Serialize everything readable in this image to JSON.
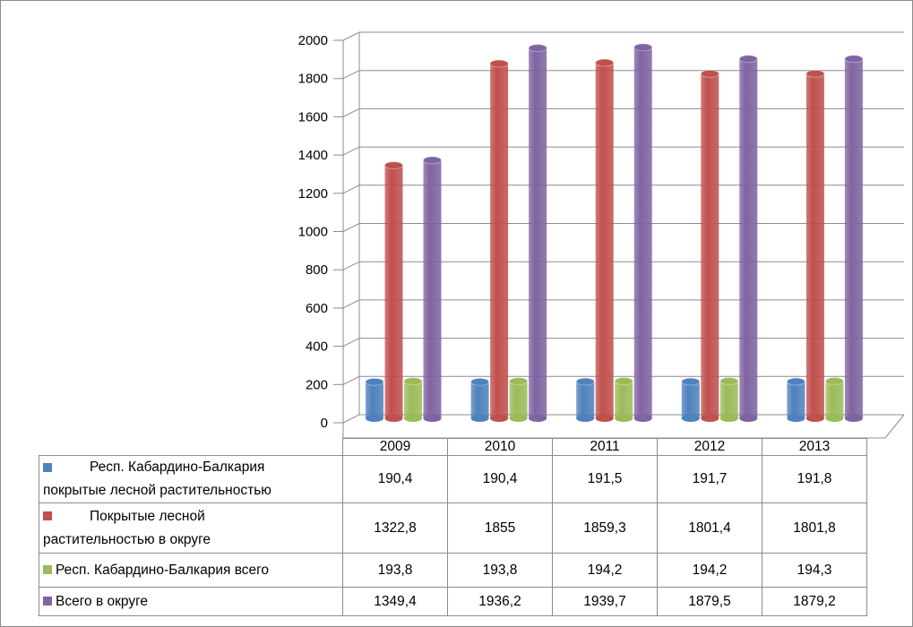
{
  "chart_data": {
    "type": "bar",
    "style": "3d-cylinder",
    "categories": [
      "2009",
      "2010",
      "2011",
      "2012",
      "2013"
    ],
    "ylim": [
      0,
      2000
    ],
    "yticks": [
      "0",
      "200",
      "400",
      "600",
      "800",
      "1000",
      "1200",
      "1400",
      "1600",
      "1800",
      "2000"
    ],
    "grid": true,
    "legend_placement": "data-table",
    "series": [
      {
        "name_line1": "Респ. Кабардино-Балкария",
        "name_line2": "покрытые лесной растительностью",
        "color": "#4f81bd",
        "values": [
          190.4,
          190.4,
          191.5,
          191.7,
          191.8
        ],
        "labels": [
          "190,4",
          "190,4",
          "191,5",
          "191,7",
          "191,8"
        ]
      },
      {
        "name_line1": "Покрытые лесной",
        "name_line2": "растительностью  в округе",
        "color": "#c0504d",
        "values": [
          1322.8,
          1855,
          1859.3,
          1801.4,
          1801.8
        ],
        "labels": [
          "1322,8",
          "1855",
          "1859,3",
          "1801,4",
          "1801,8"
        ]
      },
      {
        "name_line1": "Респ. Кабардино-Балкария всего",
        "name_line2": "",
        "color": "#9bbb59",
        "values": [
          193.8,
          193.8,
          194.2,
          194.2,
          194.3
        ],
        "labels": [
          "193,8",
          "193,8",
          "194,2",
          "194,2",
          "194,3"
        ]
      },
      {
        "name_line1": "Всего в округе",
        "name_line2": "",
        "color": "#8064a2",
        "values": [
          1349.4,
          1936.2,
          1939.7,
          1879.5,
          1879.2
        ],
        "labels": [
          "1349,4",
          "1936,2",
          "1939,7",
          "1879,5",
          "1879,2"
        ]
      }
    ]
  }
}
